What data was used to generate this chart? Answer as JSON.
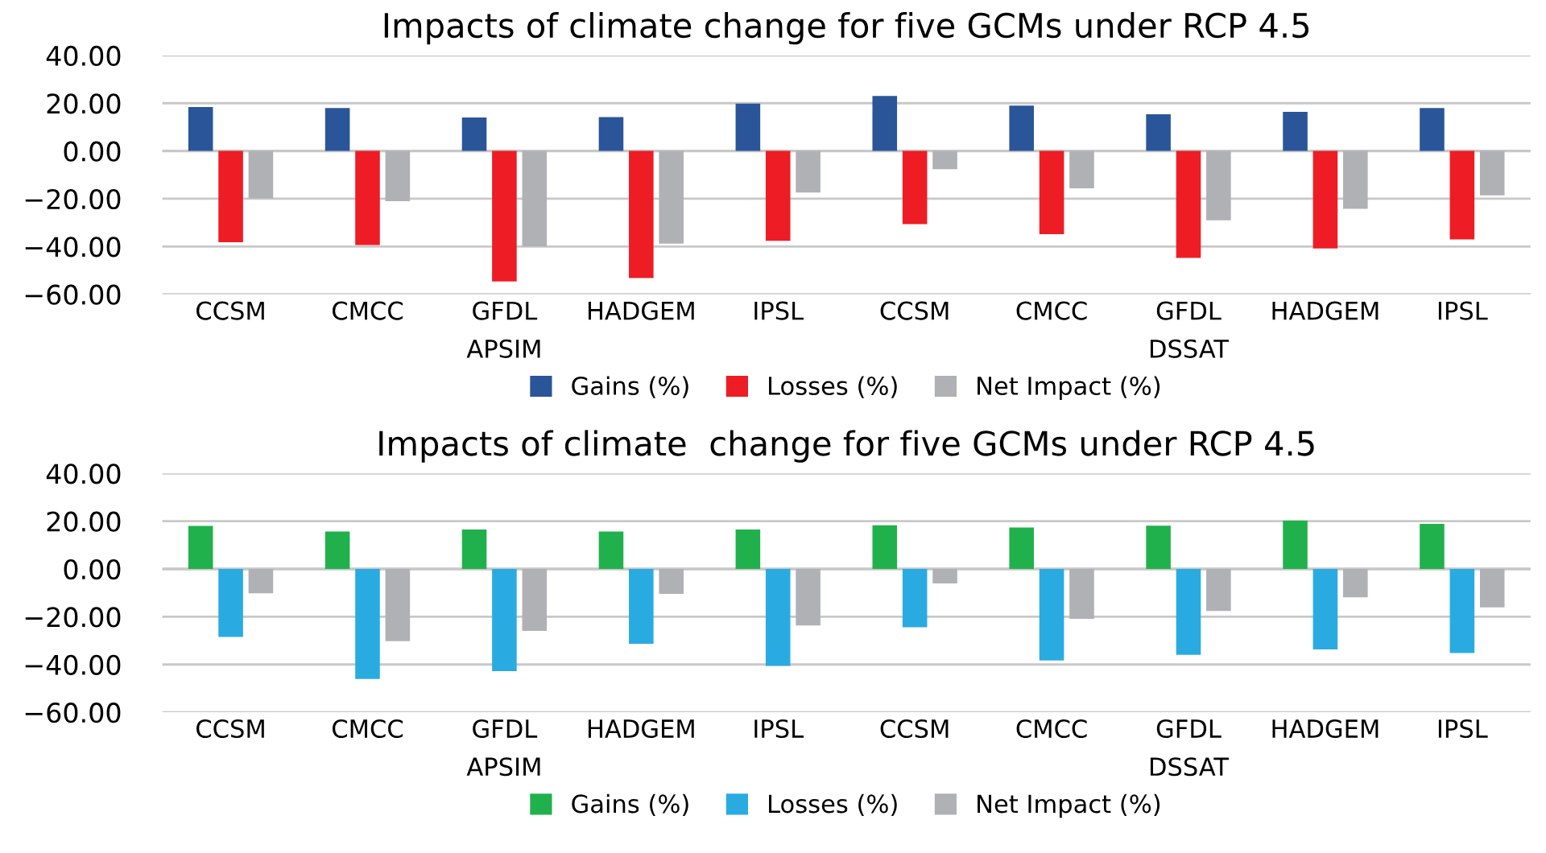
{
  "chart_data": [
    {
      "type": "bar",
      "title": "Impacts of climate change for five GCMs under RCP 4.5",
      "categories": [
        "CCSM",
        "CMCC",
        "GFDL",
        "HADGEM",
        "IPSL",
        "CCSM",
        "CMCC",
        "GFDL",
        "HADGEM",
        "IPSL"
      ],
      "series": [
        {
          "name": "Gains (%)",
          "color": "#2a5599",
          "values": [
            18.4,
            18.0,
            14.0,
            14.2,
            19.8,
            23.0,
            19.0,
            15.4,
            16.4,
            18.0
          ]
        },
        {
          "name": "Losses (%)",
          "color": "#ee1c25",
          "values": [
            -38.2,
            -39.4,
            -54.6,
            -53.2,
            -37.6,
            -30.6,
            -34.8,
            -44.8,
            -40.8,
            -37.0
          ]
        },
        {
          "name": "Net Impact (%)",
          "color": "#b0b1b5",
          "values": [
            -19.8,
            -21.0,
            -40.0,
            -38.8,
            -17.4,
            -7.6,
            -15.6,
            -29.0,
            -24.2,
            -18.6
          ]
        }
      ],
      "annotations": [
        "APSIM",
        "DSSAT"
      ],
      "ylim": [
        -60,
        40
      ],
      "yticks": [
        {
          "value": -60,
          "label": "−60.00"
        },
        {
          "value": -40,
          "label": "−40.00"
        },
        {
          "value": -20,
          "label": "−20.00"
        },
        {
          "value": 0,
          "label": "0.00"
        },
        {
          "value": 20,
          "label": "20.00"
        },
        {
          "value": 40,
          "label": "40.00"
        }
      ],
      "grid": "y",
      "legend": "bottom"
    },
    {
      "type": "bar",
      "title": "Impacts of climate  change for five GCMs under RCP 4.5",
      "categories": [
        "CCSM",
        "CMCC",
        "GFDL",
        "HADGEM",
        "IPSL",
        "CCSM",
        "CMCC",
        "GFDL",
        "HADGEM",
        "IPSL"
      ],
      "series": [
        {
          "name": "Gains (%)",
          "color": "#21b14c",
          "values": [
            18.0,
            15.7,
            16.5,
            15.7,
            16.5,
            18.3,
            17.4,
            18.1,
            20.2,
            18.9
          ]
        },
        {
          "name": "Losses (%)",
          "color": "#29abe2",
          "values": [
            -28.5,
            -46.1,
            -42.8,
            -31.3,
            -40.6,
            -24.4,
            -38.3,
            -36.0,
            -33.7,
            -35.2
          ]
        },
        {
          "name": "Net Impact (%)",
          "color": "#b0b1b5",
          "values": [
            -10.2,
            -30.2,
            -25.9,
            -10.4,
            -23.7,
            -6.1,
            -20.9,
            -17.6,
            -11.9,
            -16.1
          ]
        }
      ],
      "annotations": [
        "APSIM",
        "DSSAT"
      ],
      "ylim": [
        -60,
        40
      ],
      "yticks": [
        {
          "value": -60,
          "label": "−60.00"
        },
        {
          "value": -40,
          "label": "−40.00"
        },
        {
          "value": -20,
          "label": "−20.00"
        },
        {
          "value": 0,
          "label": "0.00"
        },
        {
          "value": 20,
          "label": "20.00"
        },
        {
          "value": 40,
          "label": "40.00"
        }
      ],
      "grid": "y",
      "legend": "bottom"
    }
  ]
}
